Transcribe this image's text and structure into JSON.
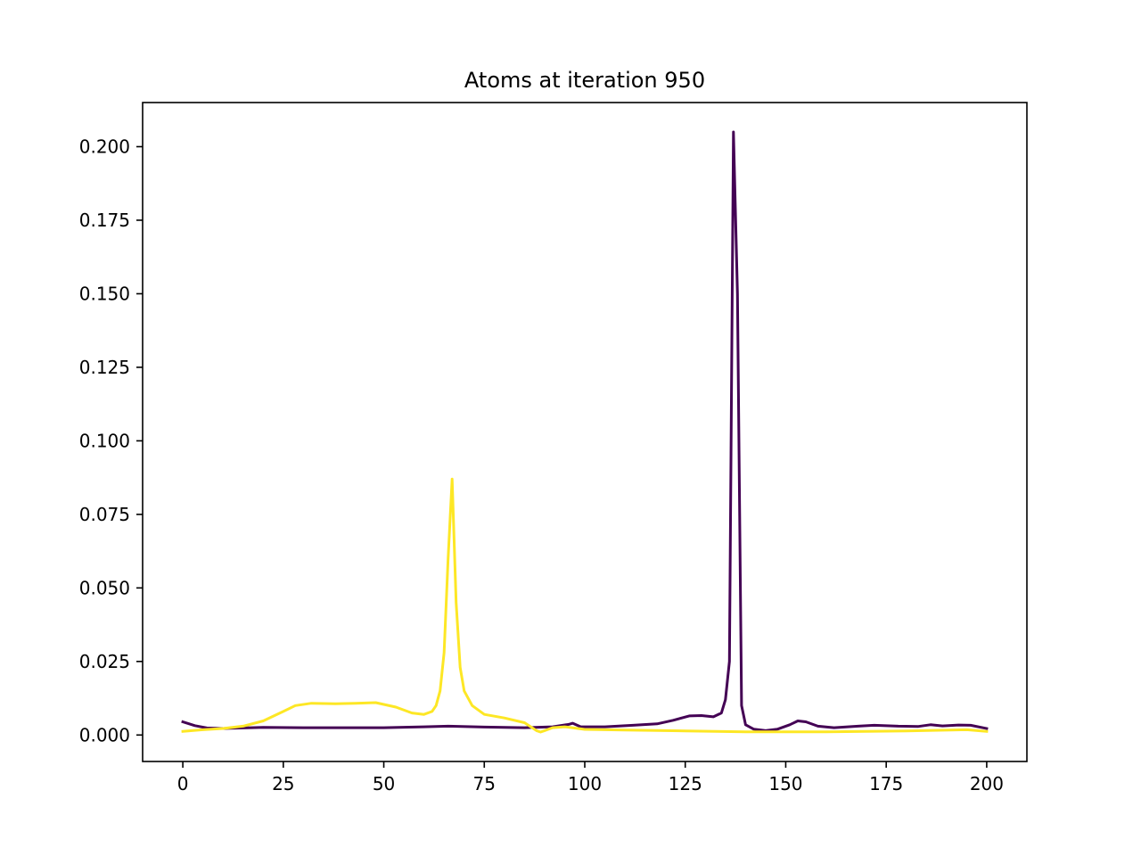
{
  "chart_data": {
    "type": "line",
    "title": "Atoms at iteration 950",
    "xlabel": "",
    "ylabel": "",
    "xlim": [
      -10,
      210
    ],
    "ylim": [
      -0.009,
      0.215
    ],
    "xticks": [
      0,
      25,
      50,
      75,
      100,
      125,
      150,
      175,
      200
    ],
    "xtick_labels": [
      "0",
      "25",
      "50",
      "75",
      "100",
      "125",
      "150",
      "175",
      "200"
    ],
    "yticks": [
      0.0,
      0.025,
      0.05,
      0.075,
      0.1,
      0.125,
      0.15,
      0.175,
      0.2
    ],
    "ytick_labels": [
      "0.000",
      "0.025",
      "0.050",
      "0.075",
      "0.100",
      "0.125",
      "0.150",
      "0.175",
      "0.200"
    ],
    "grid": false,
    "series": [
      {
        "color": "#440154",
        "points": [
          [
            0,
            0.0045
          ],
          [
            3,
            0.0032
          ],
          [
            6,
            0.0024
          ],
          [
            10,
            0.0022
          ],
          [
            15,
            0.0024
          ],
          [
            20,
            0.0026
          ],
          [
            30,
            0.0025
          ],
          [
            40,
            0.0025
          ],
          [
            50,
            0.0025
          ],
          [
            60,
            0.0028
          ],
          [
            66,
            0.003
          ],
          [
            75,
            0.0027
          ],
          [
            85,
            0.0025
          ],
          [
            92,
            0.0028
          ],
          [
            96,
            0.0036
          ],
          [
            97,
            0.004
          ],
          [
            99,
            0.0028
          ],
          [
            105,
            0.0028
          ],
          [
            112,
            0.0033
          ],
          [
            118,
            0.0038
          ],
          [
            122,
            0.005
          ],
          [
            126,
            0.0065
          ],
          [
            129,
            0.0066
          ],
          [
            132,
            0.0062
          ],
          [
            134,
            0.0075
          ],
          [
            135,
            0.012
          ],
          [
            136,
            0.025
          ],
          [
            137,
            0.205
          ],
          [
            138,
            0.15
          ],
          [
            139,
            0.01
          ],
          [
            140,
            0.0035
          ],
          [
            142,
            0.002
          ],
          [
            145,
            0.0015
          ],
          [
            148,
            0.002
          ],
          [
            151,
            0.0035
          ],
          [
            153,
            0.0048
          ],
          [
            155,
            0.0045
          ],
          [
            158,
            0.003
          ],
          [
            162,
            0.0025
          ],
          [
            168,
            0.003
          ],
          [
            172,
            0.0033
          ],
          [
            178,
            0.003
          ],
          [
            183,
            0.0029
          ],
          [
            186,
            0.0035
          ],
          [
            189,
            0.0031
          ],
          [
            193,
            0.0034
          ],
          [
            196,
            0.0033
          ],
          [
            200,
            0.0022
          ]
        ]
      },
      {
        "color": "#fde725",
        "points": [
          [
            0,
            0.0012
          ],
          [
            5,
            0.0018
          ],
          [
            10,
            0.0022
          ],
          [
            15,
            0.003
          ],
          [
            20,
            0.0048
          ],
          [
            25,
            0.008
          ],
          [
            28,
            0.01
          ],
          [
            32,
            0.0108
          ],
          [
            38,
            0.0106
          ],
          [
            43,
            0.0108
          ],
          [
            48,
            0.011
          ],
          [
            53,
            0.0095
          ],
          [
            57,
            0.0075
          ],
          [
            60,
            0.007
          ],
          [
            62,
            0.008
          ],
          [
            63,
            0.01
          ],
          [
            64,
            0.015
          ],
          [
            65,
            0.028
          ],
          [
            66,
            0.06
          ],
          [
            67,
            0.087
          ],
          [
            68,
            0.045
          ],
          [
            69,
            0.023
          ],
          [
            70,
            0.015
          ],
          [
            72,
            0.01
          ],
          [
            75,
            0.007
          ],
          [
            80,
            0.0058
          ],
          [
            85,
            0.0042
          ],
          [
            88,
            0.0015
          ],
          [
            89,
            0.001
          ],
          [
            90,
            0.0015
          ],
          [
            92,
            0.0025
          ],
          [
            95,
            0.0028
          ],
          [
            100,
            0.0019
          ],
          [
            110,
            0.0017
          ],
          [
            125,
            0.0014
          ],
          [
            140,
            0.0011
          ],
          [
            160,
            0.0011
          ],
          [
            180,
            0.0014
          ],
          [
            195,
            0.0018
          ],
          [
            200,
            0.0012
          ]
        ]
      }
    ]
  }
}
